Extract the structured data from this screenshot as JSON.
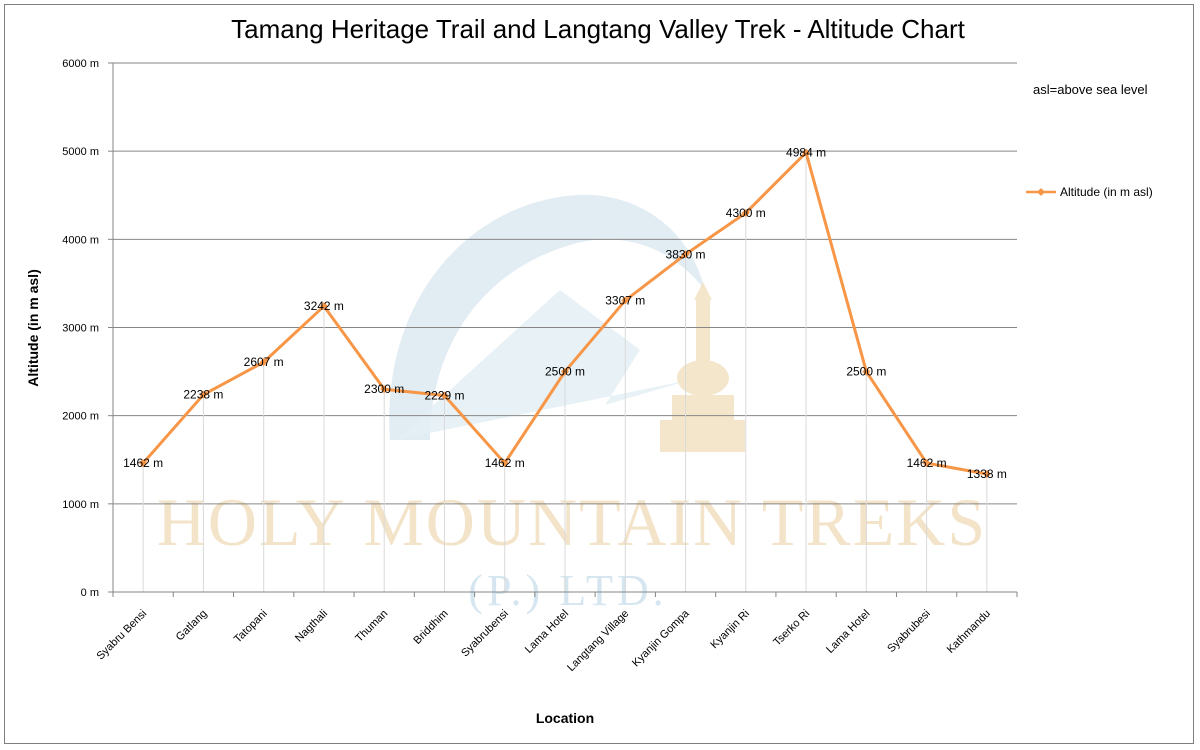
{
  "watermark": {
    "brand": "HOLY MOUNTAIN TREKS",
    "suffix": "(P.) LTD."
  },
  "chart_data": {
    "type": "line",
    "title": "Tamang Heritage Trail and Langtang Valley Trek - Altitude Chart",
    "xlabel": "Location",
    "ylabel": "Altitude (in m asl)",
    "ylim": [
      0,
      6000
    ],
    "yticks": [
      0,
      1000,
      2000,
      3000,
      4000,
      5000,
      6000
    ],
    "ytick_labels": [
      "0 m",
      "1000 m",
      "2000 m",
      "3000 m",
      "4000 m",
      "5000 m",
      "6000 m"
    ],
    "grid": "horizontal",
    "legend_position": "right",
    "note": "asl=above sea level",
    "categories": [
      "Syabru Bensi",
      "Gatlang",
      "Tatopani",
      "Nagthali",
      "Thuman",
      "Briddhim",
      "Syabrubensi",
      "Lama Hotel",
      "Langtang Village",
      "Kyanjin Gompa",
      "Kyanjin Ri",
      "Tserko Ri",
      "Lama Hotel",
      "Syabrubesi",
      "Kathmandu"
    ],
    "series": [
      {
        "name": "Altitude (in  m asl)",
        "color": "#f79646",
        "values": [
          1462,
          2238,
          2607,
          3242,
          2300,
          2229,
          1462,
          2500,
          3307,
          3830,
          4300,
          4984,
          2500,
          1462,
          1338
        ],
        "data_labels": [
          "1462 m",
          "2238 m",
          "2607 m",
          "3242 m",
          "2300 m",
          "2229 m",
          "1462 m",
          "2500 m",
          "3307 m",
          "3830 m",
          "4300 m",
          "4984 m",
          "2500 m",
          "1462 m",
          "1338 m"
        ]
      }
    ]
  }
}
